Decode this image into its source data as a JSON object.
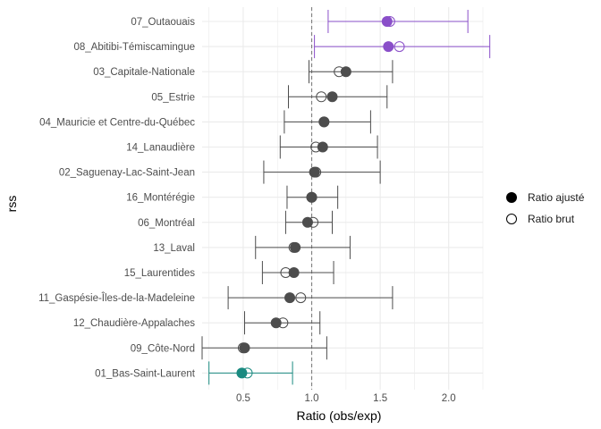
{
  "chart_data": {
    "type": "scatter",
    "xlabel": "Ratio (obs/exp)",
    "ylabel": "rss",
    "xlim": [
      0.2,
      2.25
    ],
    "x_ticks": [
      0.5,
      1.0,
      1.5,
      2.0
    ],
    "x_tick_labels": [
      "0.5",
      "1.0",
      "1.5",
      "2.0"
    ],
    "reference_line": 1.0,
    "grid": true,
    "legend_position": "right",
    "legend": [
      {
        "label": "Ratio ajusté",
        "marker": "filled-circle"
      },
      {
        "label": "Ratio brut",
        "marker": "open-circle"
      }
    ],
    "colors": {
      "neutral": "#4d4d4d",
      "high": "#8a4fc9",
      "low": "#1a8a80",
      "grid": "#ebebeb",
      "refline": "#7f7f7f"
    },
    "categories": [
      "07_Outaouais",
      "08_Abitibi-Témiscamingue",
      "03_Capitale-Nationale",
      "05_Estrie",
      "04_Mauricie et Centre-du-Québec",
      "14_Lanaudière",
      "02_Saguenay-Lac-Saint-Jean",
      "16_Montérégie",
      "06_Montréal",
      "13_Laval",
      "15_Laurentides",
      "11_Gaspésie-Îles-de-la-Madeleine",
      "12_Chaudière-Appalaches",
      "09_Côte-Nord",
      "01_Bas-Saint-Laurent"
    ],
    "series": [
      {
        "name": "Ratio ajusté",
        "values": [
          1.55,
          1.56,
          1.25,
          1.15,
          1.09,
          1.08,
          1.02,
          1.0,
          0.97,
          0.88,
          0.87,
          0.84,
          0.74,
          0.51,
          0.49
        ]
      },
      {
        "name": "Ratio brut",
        "values": [
          1.57,
          1.64,
          1.2,
          1.07,
          1.09,
          1.03,
          1.03,
          1.0,
          1.01,
          0.87,
          0.81,
          0.92,
          0.79,
          0.5,
          0.53
        ]
      }
    ],
    "ci_lower": [
      1.12,
      1.02,
      0.98,
      0.83,
      0.8,
      0.77,
      0.65,
      0.82,
      0.81,
      0.59,
      0.64,
      0.39,
      0.51,
      0.2,
      0.25
    ],
    "ci_upper": [
      2.14,
      2.3,
      1.59,
      1.55,
      1.43,
      1.48,
      1.5,
      1.19,
      1.15,
      1.28,
      1.16,
      1.59,
      1.06,
      1.11,
      0.86
    ],
    "point_color_group": [
      "high",
      "high",
      "neutral",
      "neutral",
      "neutral",
      "neutral",
      "neutral",
      "neutral",
      "neutral",
      "neutral",
      "neutral",
      "neutral",
      "neutral",
      "neutral",
      "low"
    ]
  }
}
